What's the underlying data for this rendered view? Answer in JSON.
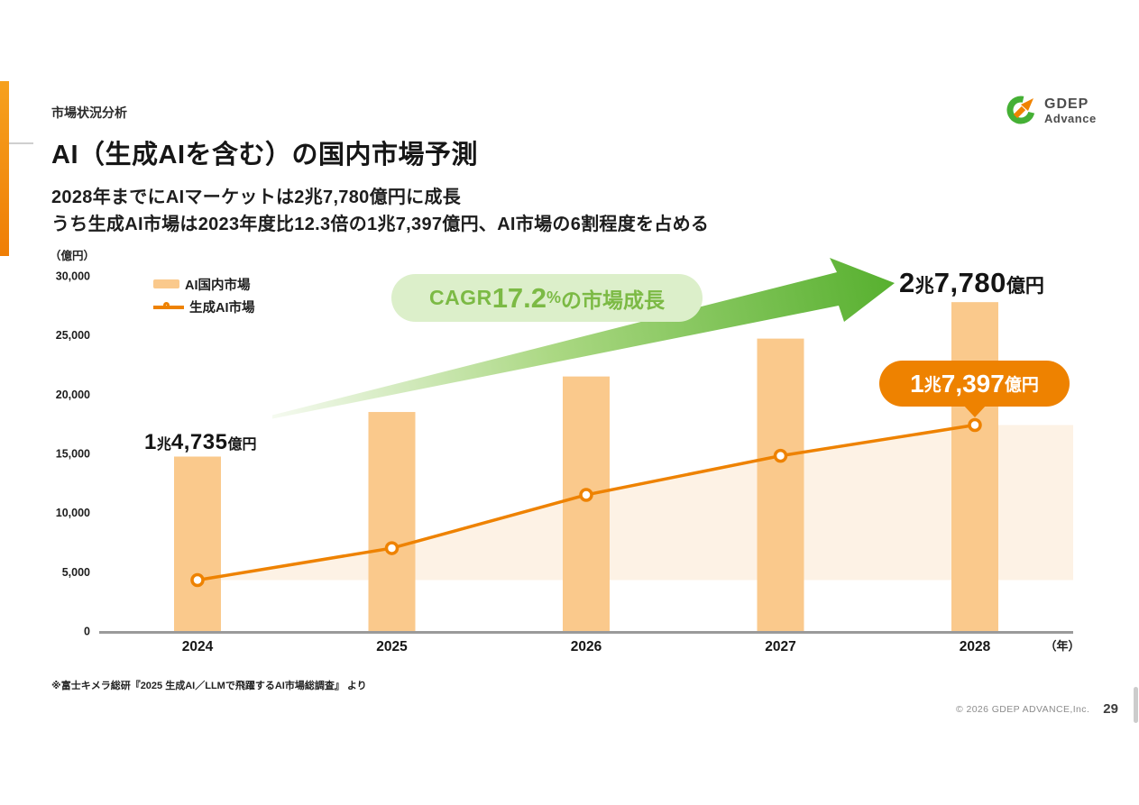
{
  "page": {
    "eyebrow": "市場状況分析",
    "title": "AI（生成AIを含む）の国内市場予測",
    "subtitle_line1": "2028年までにAIマーケットは2兆7,780億円に成長",
    "subtitle_line2": "うち生成AI市場は2023年度比12.3倍の1兆7,397億円、AI市場の6割程度を占める",
    "footnote": "※富士キメラ総研『2025 生成AI／LLMで飛躍するAI市場総調査』 より",
    "copyright": "© 2026 GDEP ADVANCE,Inc.",
    "page_number": "29"
  },
  "logo": {
    "line1": "GDEP",
    "line2": "Advance"
  },
  "chart_data": {
    "type": "bar+line",
    "title": "AI（生成AIを含む）の国内市場予測",
    "ylabel": "（億円）",
    "x_unit_label": "（年）",
    "categories": [
      "2024",
      "2025",
      "2026",
      "2027",
      "2028"
    ],
    "series": [
      {
        "name": "AI国内市場",
        "type": "bar",
        "color": "#FAC98C",
        "values": [
          14735,
          18500,
          21500,
          24700,
          27780
        ]
      },
      {
        "name": "生成AI市場",
        "type": "line",
        "color": "#EE8200",
        "marker": "open-circle",
        "values": [
          4300,
          7000,
          11500,
          14800,
          17397
        ]
      }
    ],
    "ylim": [
      0,
      30000
    ],
    "ytick_interval": 5000,
    "ytick_labels": [
      "30,000",
      "25,000",
      "20,000",
      "15,000",
      "10,000",
      "5,000",
      "0"
    ],
    "grid": false,
    "legend_position": "top-left",
    "area_fill": {
      "under_series": "生成AI市場",
      "baseline_value": 4300,
      "color": "#FDF2E5"
    },
    "axis_color": "#9A9A9A",
    "annotations": {
      "label_2024": {
        "text": "1兆4,735億円",
        "parts": [
          "1",
          "兆",
          "4,735",
          "億円"
        ]
      },
      "label_2028": {
        "text": "2兆7,780億円",
        "parts": [
          "2",
          "兆",
          "7,780",
          "億円"
        ]
      },
      "badge_2028": {
        "text": "1兆7,397億円",
        "parts": [
          "1",
          "兆",
          "7,397",
          "億円"
        ],
        "bg": "#EE8200",
        "color": "#FFFFFF"
      },
      "cagr_pill": {
        "pre": "CAGR",
        "value": "17.2",
        "unit": "%",
        "post": "の市場成長",
        "bg": "#DCEFCA",
        "color": "#7CBA45"
      },
      "growth_arrow": {
        "meaning": "market growth arrow",
        "color_start": "#F5FAF0",
        "color_mid": "#ABD883",
        "color_end": "#57B02F"
      }
    }
  }
}
